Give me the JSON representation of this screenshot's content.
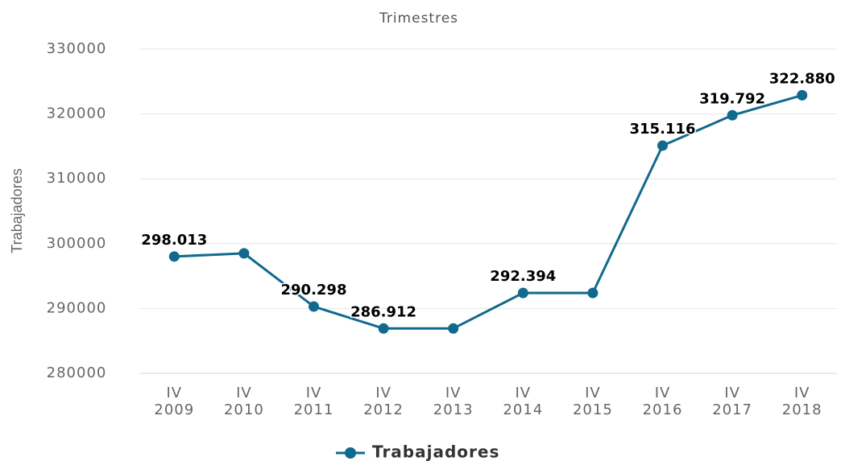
{
  "chart_data": {
    "type": "line",
    "title": "Trimestres",
    "y_label": "Trabajadores",
    "categories": [
      [
        "IV",
        "2009"
      ],
      [
        "IV",
        "2010"
      ],
      [
        "IV",
        "2011"
      ],
      [
        "IV",
        "2012"
      ],
      [
        "IV",
        "2013"
      ],
      [
        "IV",
        "2014"
      ],
      [
        "IV",
        "2015"
      ],
      [
        "IV",
        "2016"
      ],
      [
        "IV",
        "2017"
      ],
      [
        "IV",
        "2018"
      ]
    ],
    "series": [
      {
        "name": "Trabajadores",
        "color": "#11698e",
        "values": [
          298013,
          298500,
          290298,
          286912,
          286912,
          292394,
          292394,
          315116,
          319792,
          322880
        ],
        "value_labels": [
          "298.013",
          null,
          "290.298",
          "286.912",
          null,
          "292.394",
          null,
          "315.116",
          "319.792",
          "322.880"
        ]
      }
    ],
    "ylim": [
      280000,
      330000
    ],
    "yticks": [
      280000,
      290000,
      300000,
      310000,
      320000,
      330000
    ],
    "grid": true,
    "legend": "bottom"
  }
}
